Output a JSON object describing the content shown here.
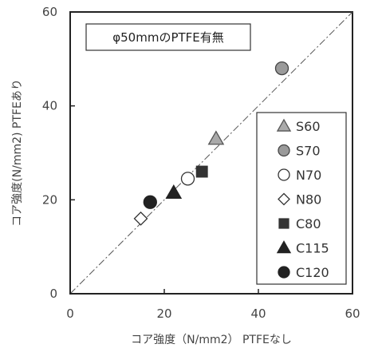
{
  "chart_data": {
    "type": "scatter",
    "annotation": "φ50mmのPTFE有無",
    "xlabel": "コア強度（N/mm2） PTFEなし",
    "ylabel": "コア強度(N/mm2) PTFEあり",
    "xlim": [
      0,
      60
    ],
    "ylim": [
      0,
      60
    ],
    "xticks": [
      "0",
      "20",
      "40",
      "60"
    ],
    "yticks": [
      "0",
      "20",
      "40",
      "60"
    ],
    "grid": false,
    "legend_position": "bottom-right",
    "reference_line": {
      "style": "dash-dot",
      "x": [
        0,
        60
      ],
      "y": [
        0,
        60
      ]
    },
    "series": [
      {
        "name": "S60",
        "marker": "triangle",
        "fill": "#aaaaaa",
        "stroke": "#555555",
        "x": [
          31
        ],
        "y": [
          33
        ]
      },
      {
        "name": "S70",
        "marker": "circle",
        "fill": "#9a9a9a",
        "stroke": "#444444",
        "x": [
          45
        ],
        "y": [
          48
        ]
      },
      {
        "name": "N70",
        "marker": "circle",
        "fill": "#ffffff",
        "stroke": "#333333",
        "x": [
          25
        ],
        "y": [
          24.5
        ]
      },
      {
        "name": "N80",
        "marker": "diamond",
        "fill": "#ffffff",
        "stroke": "#333333",
        "x": [
          15
        ],
        "y": [
          16
        ]
      },
      {
        "name": "C80",
        "marker": "square",
        "fill": "#333333",
        "stroke": "#333333",
        "x": [
          28
        ],
        "y": [
          26
        ]
      },
      {
        "name": "C115",
        "marker": "triangle",
        "fill": "#222222",
        "stroke": "#222222",
        "x": [
          22
        ],
        "y": [
          21.5
        ]
      },
      {
        "name": "C120",
        "marker": "circle",
        "fill": "#222222",
        "stroke": "#222222",
        "x": [
          17
        ],
        "y": [
          19.5
        ]
      }
    ]
  }
}
